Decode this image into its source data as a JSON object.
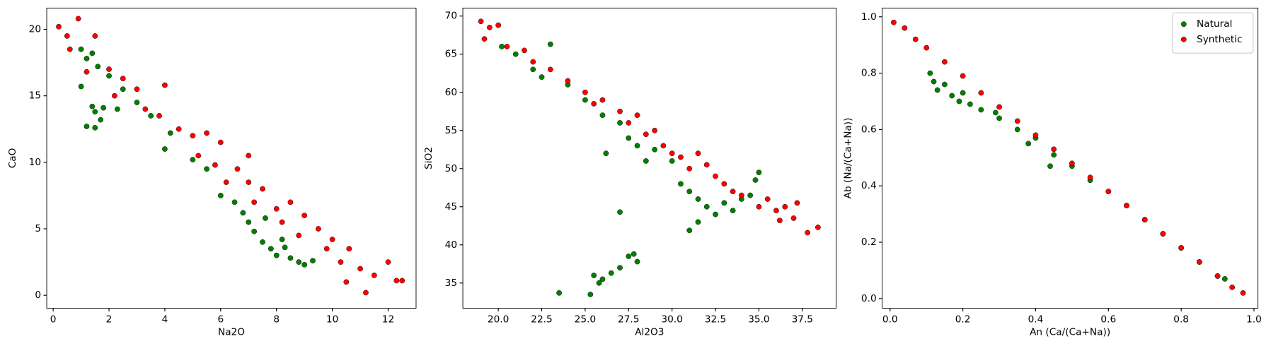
{
  "chart_data": [
    {
      "type": "scatter",
      "xlabel": "Na2O",
      "ylabel": "CaO",
      "xlim": [
        -0.23,
        13.0
      ],
      "ylim": [
        -0.97,
        21.6
      ],
      "xticks": [
        0,
        2,
        4,
        6,
        8,
        10,
        12
      ],
      "yticks": [
        0,
        5,
        10,
        15,
        20
      ],
      "series": [
        {
          "name": "Natural",
          "color": "#008000",
          "x": [
            1.0,
            1.2,
            1.4,
            1.6,
            2.0,
            2.5,
            3.0,
            3.5,
            4.0,
            4.2,
            5.0,
            5.5,
            6.0,
            6.5,
            7.0,
            7.2,
            7.5,
            7.8,
            8.0,
            8.2,
            8.5,
            8.8,
            9.0,
            9.3,
            7.6,
            1.4,
            1.5,
            1.2,
            1.7,
            1.0,
            1.8,
            1.5,
            2.3,
            6.8,
            8.3
          ],
          "y": [
            18.5,
            17.8,
            18.2,
            17.2,
            16.5,
            15.5,
            14.5,
            13.5,
            11,
            12.2,
            10.2,
            9.5,
            7.5,
            7.0,
            5.5,
            4.8,
            4.0,
            3.5,
            3.0,
            4.2,
            2.8,
            2.5,
            2.3,
            2.6,
            5.8,
            14.2,
            13.8,
            12.7,
            13.2,
            15.7,
            14.1,
            12.6,
            14.0,
            6.2,
            3.6
          ]
        },
        {
          "name": "Synthetic",
          "color": "#ff0000",
          "x": [
            0.2,
            0.5,
            0.9,
            0.6,
            1.5,
            1.2,
            2.0,
            2.5,
            2.2,
            3,
            3.3,
            3.8,
            4,
            4.5,
            5,
            5.2,
            5.8,
            6,
            6.2,
            6.6,
            7,
            7.2,
            7.5,
            8,
            8.2,
            8.5,
            8.8,
            9,
            9.5,
            9.8,
            10,
            10.3,
            10.6,
            10.5,
            11,
            11.2,
            11.5,
            12,
            12.3,
            12.5,
            7.0,
            5.5
          ],
          "y": [
            20.2,
            19.5,
            20.8,
            18.5,
            19.5,
            16.8,
            17,
            16.3,
            15,
            15.5,
            14,
            13.5,
            15.8,
            12.5,
            12,
            10.5,
            9.8,
            11.5,
            8.5,
            9.5,
            8.5,
            7,
            8,
            6.5,
            5.5,
            7,
            4.5,
            6,
            5,
            3.5,
            4.2,
            2.5,
            3.5,
            1,
            2,
            0.2,
            1.5,
            2.5,
            1.1,
            1.1,
            10.5,
            12.2
          ]
        }
      ]
    },
    {
      "type": "scatter",
      "xlabel": "Al2O3",
      "ylabel": "SiO2",
      "xlim": [
        17.96,
        39.45
      ],
      "ylim": [
        31.7,
        71.05
      ],
      "xticks": [
        {
          "value": 20,
          "label": "20.0"
        },
        {
          "value": 22.5,
          "label": "22.5"
        },
        {
          "value": 25,
          "label": "25.0"
        },
        {
          "value": 27.5,
          "label": "27.5"
        },
        {
          "value": 30,
          "label": "30.0"
        },
        {
          "value": 32.5,
          "label": "32.5"
        },
        {
          "value": 35,
          "label": "35.0"
        },
        {
          "value": 37.5,
          "label": "37.5"
        }
      ],
      "yticks": [
        35,
        40,
        45,
        50,
        55,
        60,
        65,
        70
      ],
      "series": [
        {
          "name": "Natural",
          "color": "#008000",
          "x": [
            20.2,
            21,
            22,
            22.5,
            23,
            24,
            25,
            26,
            27,
            27.5,
            28,
            28.5,
            29,
            30,
            30.5,
            31,
            31.5,
            32,
            32.5,
            33,
            33.5,
            34,
            34.5,
            35,
            34.8,
            26.2,
            27,
            31,
            31.5,
            23.5,
            25.3,
            25.5,
            26,
            26.5,
            27,
            27.5,
            27.8,
            28,
            25.8
          ],
          "y": [
            66,
            65,
            63,
            62,
            66.3,
            61,
            59,
            57,
            56,
            54,
            53,
            51,
            52.5,
            51,
            48,
            47,
            46,
            45,
            44,
            45.5,
            44.5,
            46,
            46.5,
            49.5,
            48.5,
            52,
            44.3,
            41.9,
            43,
            33.7,
            33.5,
            36,
            35.5,
            36.3,
            37,
            38.5,
            38.8,
            37.8,
            35
          ]
        },
        {
          "name": "Synthetic",
          "color": "#ff0000",
          "x": [
            19,
            19.5,
            20,
            19.2,
            20.5,
            21.5,
            22,
            23,
            24,
            25,
            25.5,
            26,
            27,
            27.5,
            28,
            28.5,
            29,
            29.5,
            30,
            30.5,
            31,
            31.5,
            32,
            32.5,
            33,
            33.5,
            34,
            35,
            35.5,
            36,
            36.5,
            37,
            37.2,
            37.8,
            38.4,
            36.2
          ],
          "y": [
            69.3,
            68.5,
            68.8,
            67,
            66,
            65.5,
            64,
            63,
            61.5,
            60,
            58.5,
            59,
            57.5,
            56,
            57,
            54.5,
            55,
            53,
            52,
            51.5,
            50,
            52,
            50.5,
            49,
            48,
            47,
            46.5,
            45,
            46,
            44.5,
            45,
            43.5,
            45.5,
            41.6,
            42.3,
            43.2
          ]
        }
      ]
    },
    {
      "type": "scatter",
      "xlabel": "An (Ca/(Ca+Na))",
      "ylabel": "Ab (Na/(Ca+Na))",
      "legend": "upper right",
      "xlim": [
        -0.0217,
        1.011
      ],
      "ylim": [
        -0.034,
        1.031
      ],
      "xticks": [
        {
          "value": 0,
          "label": "0.0"
        },
        {
          "value": 0.2,
          "label": "0.2"
        },
        {
          "value": 0.4,
          "label": "0.4"
        },
        {
          "value": 0.6,
          "label": "0.6"
        },
        {
          "value": 0.8,
          "label": "0.8"
        },
        {
          "value": 1,
          "label": "1.0"
        }
      ],
      "yticks": [
        {
          "value": 0,
          "label": "0.0"
        },
        {
          "value": 0.2,
          "label": "0.2"
        },
        {
          "value": 0.4,
          "label": "0.4"
        },
        {
          "value": 0.6,
          "label": "0.6"
        },
        {
          "value": 0.8,
          "label": "0.8"
        },
        {
          "value": 1,
          "label": "1.0"
        }
      ],
      "series": [
        {
          "name": "Natural",
          "color": "#008000",
          "x": [
            0.11,
            0.12,
            0.13,
            0.15,
            0.17,
            0.19,
            0.2,
            0.22,
            0.25,
            0.3,
            0.35,
            0.38,
            0.4,
            0.45,
            0.5,
            0.55,
            0.6,
            0.65,
            0.7,
            0.75,
            0.8,
            0.85,
            0.9,
            0.92,
            0.44,
            0.29
          ],
          "y": [
            0.8,
            0.77,
            0.74,
            0.76,
            0.72,
            0.7,
            0.73,
            0.69,
            0.67,
            0.64,
            0.6,
            0.55,
            0.57,
            0.51,
            0.47,
            0.42,
            0.38,
            0.33,
            0.28,
            0.23,
            0.18,
            0.13,
            0.08,
            0.07,
            0.47,
            0.66
          ]
        },
        {
          "name": "Synthetic",
          "color": "#ff0000",
          "x": [
            0.01,
            0.04,
            0.07,
            0.1,
            0.15,
            0.2,
            0.25,
            0.3,
            0.35,
            0.4,
            0.45,
            0.5,
            0.55,
            0.6,
            0.65,
            0.7,
            0.75,
            0.8,
            0.85,
            0.9,
            0.94,
            0.97
          ],
          "y": [
            0.98,
            0.96,
            0.92,
            0.89,
            0.84,
            0.79,
            0.73,
            0.68,
            0.63,
            0.58,
            0.53,
            0.48,
            0.43,
            0.38,
            0.33,
            0.28,
            0.23,
            0.18,
            0.13,
            0.08,
            0.04,
            0.02
          ]
        }
      ]
    }
  ]
}
